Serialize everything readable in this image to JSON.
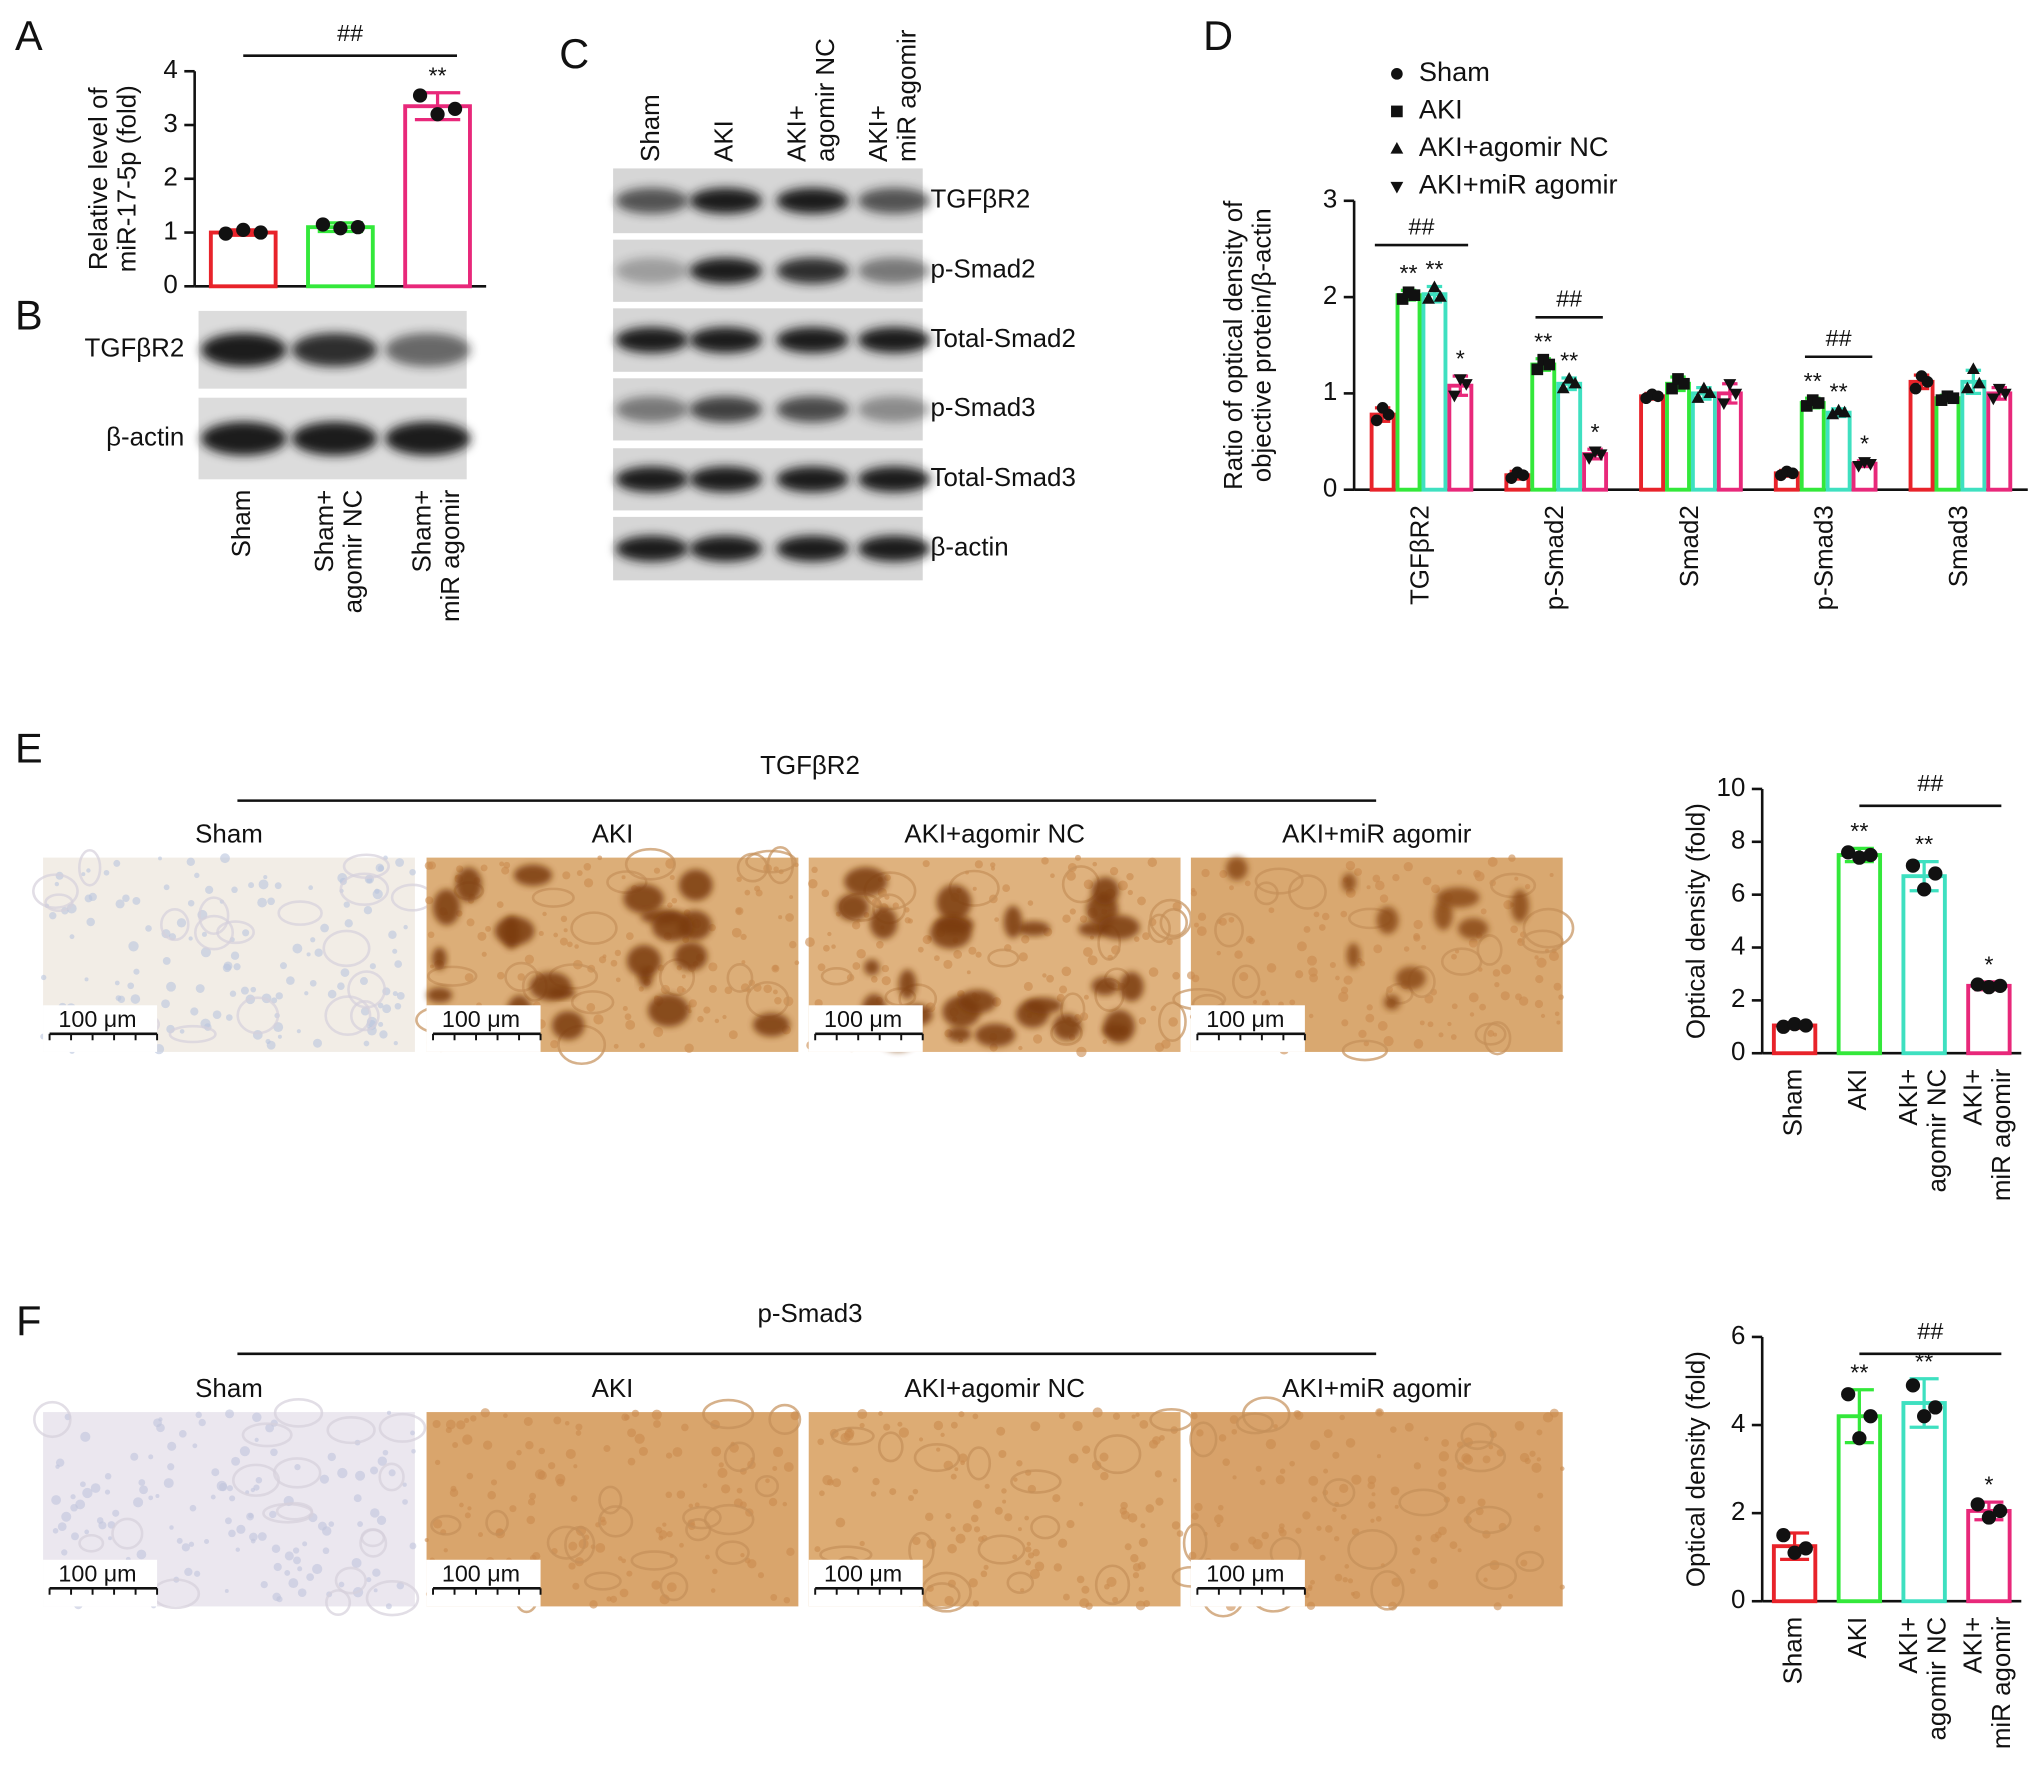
{
  "panel_letters": [
    "A",
    "B",
    "C",
    "D",
    "E",
    "F"
  ],
  "chart_data": [
    {
      "type": "bar",
      "y_label": "Relative level of\nmiR-17-5p (fold)",
      "categories": [
        "Sham",
        "Sham+\nagomir NC",
        "Sham+\nmiR agomir"
      ],
      "values": [
        1.0,
        1.1,
        3.35
      ],
      "errors": [
        0.05,
        0.08,
        0.25
      ],
      "points": [
        [
          0.98,
          1.05,
          1.0
        ],
        [
          1.15,
          1.08,
          1.1
        ],
        [
          3.55,
          3.2,
          3.3
        ]
      ],
      "colors": [
        "#e8232a",
        "#33e83a",
        "#e8287a"
      ],
      "stars": [
        null,
        null,
        "**"
      ],
      "brackets": [
        {
          "text": "##",
          "from": 0,
          "to": 2
        }
      ],
      "ylim": [
        0,
        4
      ],
      "yticks": [
        0,
        1,
        2,
        3,
        4
      ],
      "grid": false
    },
    {
      "type": "bar",
      "y_label": "Ratio of optical density of\nobjective protein/β-actin",
      "categories": [
        "TGFβR2",
        "p-Smad2",
        "Smad2",
        "p-Smad3",
        "Smad3"
      ],
      "legend": "top",
      "series": [
        {
          "name": "Sham",
          "color": "#e8232a",
          "marker": "circle",
          "values": [
            0.78,
            0.15,
            0.97,
            0.17,
            1.12
          ],
          "errors": [
            0.07,
            0.04,
            0.03,
            0.03,
            0.07
          ],
          "points": [
            [
              0.72,
              0.85,
              0.78
            ],
            [
              0.12,
              0.18,
              0.15
            ],
            [
              0.95,
              0.99,
              0.97
            ],
            [
              0.15,
              0.19,
              0.17
            ],
            [
              1.05,
              1.18,
              1.12
            ]
          ],
          "stars": [
            null,
            null,
            null,
            null,
            null
          ]
        },
        {
          "name": "AKI",
          "color": "#33e83a",
          "marker": "square",
          "values": [
            2.02,
            1.3,
            1.1,
            0.9,
            0.95
          ],
          "errors": [
            0.05,
            0.06,
            0.07,
            0.05,
            0.03
          ],
          "points": [
            [
              1.98,
              2.05,
              2.02
            ],
            [
              1.25,
              1.35,
              1.3
            ],
            [
              1.05,
              1.15,
              1.1
            ],
            [
              0.87,
              0.93,
              0.9
            ],
            [
              0.93,
              0.97,
              0.95
            ]
          ],
          "stars": [
            "**",
            "**",
            null,
            "**",
            null
          ]
        },
        {
          "name": "AKI+agomir NC",
          "color": "#3ee0c0",
          "marker": "triangle-up",
          "values": [
            2.03,
            1.1,
            1.0,
            0.8,
            1.12
          ],
          "errors": [
            0.08,
            0.06,
            0.06,
            0.04,
            0.12
          ],
          "points": [
            [
              1.98,
              2.1,
              2.0
            ],
            [
              1.05,
              1.15,
              1.1
            ],
            [
              0.95,
              1.05,
              1.0
            ],
            [
              0.78,
              0.82,
              0.8
            ],
            [
              1.05,
              1.25,
              1.1
            ]
          ],
          "stars": [
            "**",
            "**",
            null,
            "**",
            null
          ]
        },
        {
          "name": "AKI+miR agomir",
          "color": "#e8287a",
          "marker": "triangle-down",
          "values": [
            1.08,
            0.37,
            1.0,
            0.27,
            1.0
          ],
          "errors": [
            0.1,
            0.05,
            0.1,
            0.03,
            0.06
          ],
          "points": [
            [
              0.98,
              1.15,
              1.1
            ],
            [
              0.33,
              0.4,
              0.37
            ],
            [
              0.9,
              1.1,
              1.0
            ],
            [
              0.25,
              0.29,
              0.27
            ],
            [
              0.95,
              1.05,
              1.0
            ]
          ],
          "stars": [
            "*",
            "*",
            null,
            "*",
            null
          ]
        }
      ],
      "brackets": [
        {
          "text": "##",
          "category": 0,
          "from": 0,
          "to": 3
        },
        {
          "text": "##",
          "category": 1,
          "from": 1,
          "to": 3
        },
        {
          "text": "##",
          "category": 3,
          "from": 1,
          "to": 3
        }
      ],
      "ylim": [
        0,
        3
      ],
      "yticks": [
        0,
        1,
        2,
        3
      ],
      "grid": false
    },
    {
      "type": "bar",
      "y_label": "Optical density (fold)",
      "categories": [
        "Sham",
        "AKI",
        "AKI+\nagomir NC",
        "AKI+\nmiR agomir"
      ],
      "values": [
        1.05,
        7.5,
        6.7,
        2.55
      ],
      "errors": [
        0.1,
        0.25,
        0.55,
        0.15
      ],
      "points": [
        [
          1.0,
          1.1,
          1.05
        ],
        [
          7.6,
          7.4,
          7.5
        ],
        [
          7.1,
          6.2,
          6.8
        ],
        [
          2.6,
          2.5,
          2.55
        ]
      ],
      "colors": [
        "#e8232a",
        "#33e83a",
        "#3ee0c0",
        "#e8287a"
      ],
      "stars": [
        null,
        "**",
        "**",
        "*"
      ],
      "brackets": [
        {
          "text": "##",
          "from": 1,
          "to": 3
        }
      ],
      "ylim": [
        0,
        10
      ],
      "yticks": [
        0,
        2,
        4,
        6,
        8,
        10
      ],
      "grid": false
    },
    {
      "type": "bar",
      "y_label": "Optical density (fold)",
      "categories": [
        "Sham",
        "AKI",
        "AKI+\nagomir NC",
        "AKI+\nmiR agomir"
      ],
      "values": [
        1.25,
        4.2,
        4.5,
        2.05
      ],
      "errors": [
        0.3,
        0.6,
        0.55,
        0.2
      ],
      "points": [
        [
          1.5,
          1.1,
          1.2
        ],
        [
          4.7,
          3.7,
          4.2
        ],
        [
          4.9,
          4.2,
          4.4
        ],
        [
          2.2,
          1.9,
          2.05
        ]
      ],
      "colors": [
        "#e8232a",
        "#33e83a",
        "#3ee0c0",
        "#e8287a"
      ],
      "stars": [
        null,
        "**",
        "**",
        "*"
      ],
      "brackets": [
        {
          "text": "##",
          "from": 1,
          "to": 3
        }
      ],
      "ylim": [
        0,
        6
      ],
      "yticks": [
        0,
        2,
        4,
        6
      ],
      "grid": false
    }
  ],
  "blot_b": {
    "rows": [
      "TGFβR2",
      "β-actin"
    ]
  },
  "blot_c": {
    "lanes": [
      "Sham",
      "AKI",
      "AKI+\nagomir NC",
      "AKI+\nmiR agomir"
    ],
    "rows": [
      "TGFβR2",
      "p-Smad2",
      "Total-Smad2",
      "p-Smad3",
      "Total-Smad3",
      "β-actin"
    ]
  },
  "ihc": [
    {
      "title": "TGFβR2",
      "groups": [
        "Sham",
        "AKI",
        "AKI+agomir NC",
        "AKI+miR agomir"
      ],
      "scale_bar": "100 μm"
    },
    {
      "title": "p-Smad3",
      "groups": [
        "Sham",
        "AKI",
        "AKI+agomir NC",
        "AKI+miR agomir"
      ],
      "scale_bar": "100 μm"
    }
  ]
}
